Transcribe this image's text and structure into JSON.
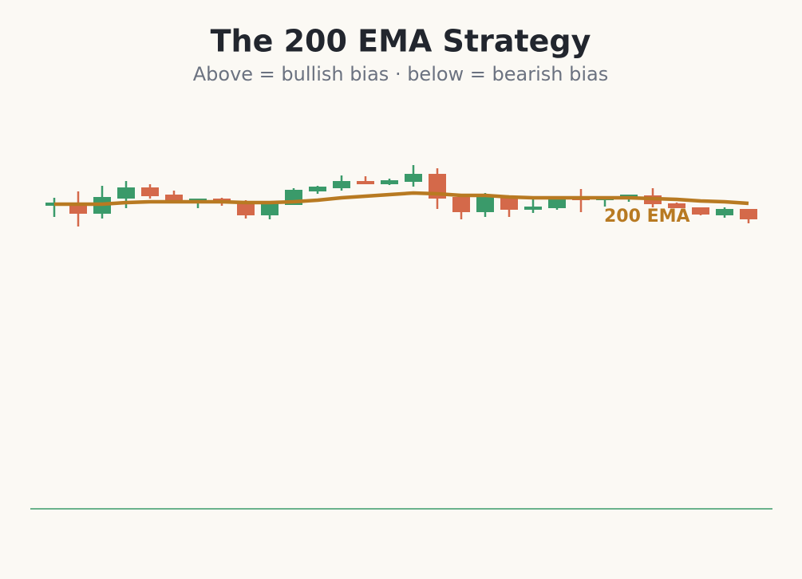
{
  "chart_data": {
    "type": "candlestick",
    "title": "The 200 EMA Strategy",
    "subtitle": "Above = bullish bias · below = bearish bias",
    "annotation": "200 EMA",
    "up_color": "#3a9a6a",
    "down_color": "#d4694a",
    "ema_color": "#b87a22",
    "ylim": [
      0,
      500
    ],
    "open": [
      380,
      384,
      370,
      389,
      403,
      394,
      385,
      389,
      384,
      368,
      381,
      398,
      402,
      411,
      407,
      410,
      420,
      391,
      372,
      391,
      375,
      377,
      390,
      389,
      388,
      393,
      383,
      378,
      368,
      376
    ],
    "high": [
      390,
      398,
      405,
      411,
      407,
      399,
      389,
      390,
      387,
      384,
      402,
      405,
      418,
      417,
      414,
      431,
      427,
      393,
      396,
      391,
      388,
      391,
      401,
      390,
      394,
      402,
      384,
      378,
      378,
      376
    ],
    "low": [
      366,
      354,
      364,
      377,
      389,
      385,
      377,
      380,
      364,
      363,
      381,
      395,
      399,
      407,
      406,
      404,
      376,
      363,
      366,
      366,
      371,
      375,
      372,
      379,
      385,
      378,
      377,
      368,
      365,
      358
    ],
    "close": [
      384,
      370,
      391,
      403,
      392,
      385,
      389,
      383,
      368,
      384,
      400,
      404,
      411,
      407,
      412,
      420,
      389,
      372,
      391,
      375,
      379,
      389,
      389,
      390,
      394,
      382,
      377,
      369,
      376,
      363
    ],
    "ema": [
      382,
      382,
      382,
      384,
      385,
      385,
      385,
      385,
      384,
      384,
      385,
      387,
      390,
      392,
      394,
      396,
      395,
      393,
      393,
      391,
      390,
      390,
      390,
      390,
      390,
      389,
      388,
      386,
      385,
      383
    ]
  }
}
